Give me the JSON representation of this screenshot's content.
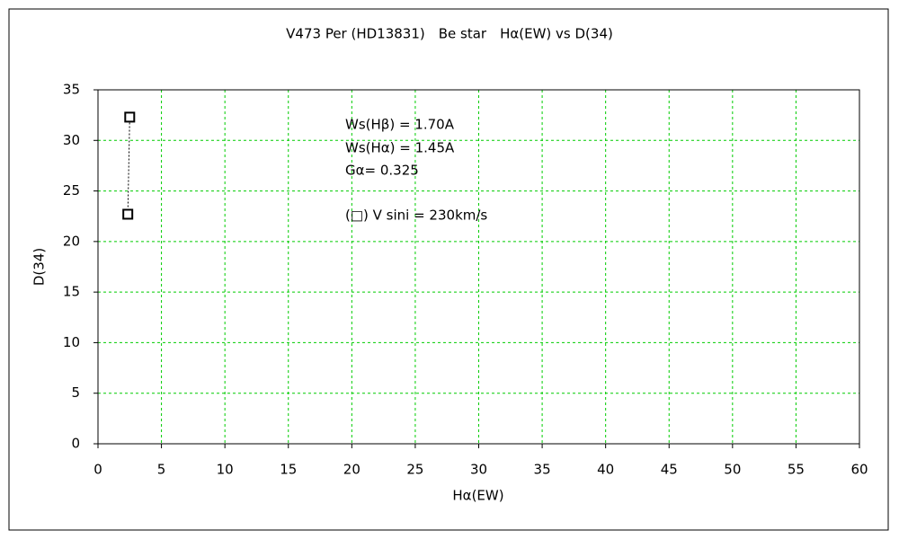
{
  "chart_data": {
    "type": "scatter",
    "title": "V473 Per (HD13831)　Be star　Hα(EW) vs D(34)",
    "x_label": "Hα(EW)",
    "y_label": "D(34)",
    "annotations": [
      "Ws(Hβ) = 1.70A",
      "Ws(Hα) = 1.45A",
      "Gα= 0.325",
      "(□) V sini = 230km/s"
    ],
    "series": [
      {
        "color": "#000000",
        "x": [
          2.35,
          2.5
        ],
        "values": [
          22.7,
          32.3
        ],
        "connect": "dotted"
      }
    ],
    "xlim": [
      0,
      60
    ],
    "xticks": [
      0,
      5,
      10,
      15,
      20,
      25,
      30,
      35,
      40,
      45,
      50,
      55,
      60
    ],
    "ylim": [
      0,
      35
    ],
    "yticks": [
      0,
      5,
      10,
      15,
      20,
      25,
      30,
      35
    ],
    "grid": true,
    "grid_color": "#00cc00"
  }
}
